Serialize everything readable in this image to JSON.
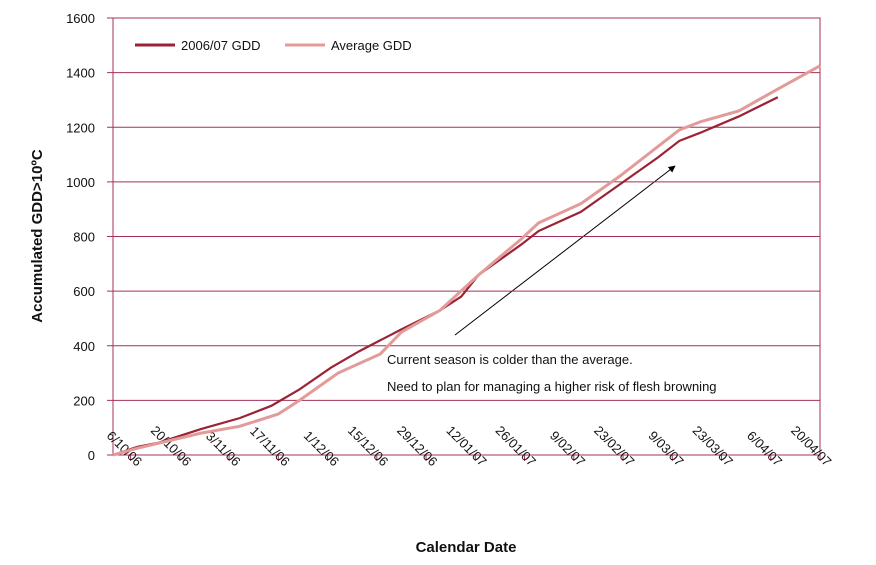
{
  "chart_data": {
    "type": "line",
    "y_label": "Accumulated GDD>10ºC",
    "x_label": "Calendar Date",
    "annotation": [
      "Current season is colder than the average.",
      "Need to plan for managing a higher risk of flesh browning"
    ],
    "xlim": [
      "2006-10-01",
      "2007-04-20"
    ],
    "xticks": [
      {
        "value": "2006-10-06",
        "label": "6/10/06"
      },
      {
        "value": "2006-10-20",
        "label": "20/10/06"
      },
      {
        "value": "2006-11-03",
        "label": "3/11/06"
      },
      {
        "value": "2006-11-17",
        "label": "17/11/06"
      },
      {
        "value": "2006-12-01",
        "label": "1/12/06"
      },
      {
        "value": "2006-12-15",
        "label": "15/12/06"
      },
      {
        "value": "2006-12-29",
        "label": "29/12/06"
      },
      {
        "value": "2007-01-12",
        "label": "12/01/07"
      },
      {
        "value": "2007-01-26",
        "label": "26/01/07"
      },
      {
        "value": "2007-02-09",
        "label": "9/02/07"
      },
      {
        "value": "2007-02-23",
        "label": "23/02/07"
      },
      {
        "value": "2007-03-09",
        "label": "9/03/07"
      },
      {
        "value": "2007-03-23",
        "label": "23/03/07"
      },
      {
        "value": "2007-04-06",
        "label": "6/04/07"
      },
      {
        "value": "2007-04-20",
        "label": "20/04/07"
      }
    ],
    "ylim": [
      0,
      1600
    ],
    "yticks": [
      0,
      200,
      400,
      600,
      800,
      1000,
      1200,
      1400,
      1600
    ],
    "grid": true,
    "legend": "top-left",
    "series": [
      {
        "name": "2006/07 GDD",
        "color": "#9b2335",
        "x": [
          "2006-10-01",
          "2006-10-08",
          "2006-10-14",
          "2006-10-26",
          "2006-11-06",
          "2006-11-15",
          "2006-11-23",
          "2006-12-02",
          "2006-12-10",
          "2006-12-22",
          "2007-01-02",
          "2007-01-08",
          "2007-01-13",
          "2007-01-25",
          "2007-01-30",
          "2007-02-11",
          "2007-02-22",
          "2007-03-05",
          "2007-03-11",
          "2007-03-17",
          "2007-03-28",
          "2007-04-08"
        ],
        "values": [
          0,
          30,
          45,
          95,
          135,
          180,
          240,
          320,
          380,
          460,
          530,
          580,
          660,
          770,
          820,
          890,
          990,
          1090,
          1150,
          1180,
          1240,
          1310
        ]
      },
      {
        "name": "Average GDD",
        "color": "#e39b9a",
        "x": [
          "2006-10-01",
          "2006-10-08",
          "2006-10-26",
          "2006-11-06",
          "2006-11-17",
          "2006-11-23",
          "2006-12-04",
          "2006-12-16",
          "2006-12-22",
          "2007-01-02",
          "2007-01-13",
          "2007-01-25",
          "2007-01-30",
          "2007-02-11",
          "2007-02-22",
          "2007-03-05",
          "2007-03-11",
          "2007-03-17",
          "2007-03-28",
          "2007-04-08",
          "2007-04-20"
        ],
        "values": [
          0,
          25,
          80,
          105,
          150,
          200,
          300,
          370,
          450,
          530,
          660,
          790,
          850,
          920,
          1020,
          1130,
          1190,
          1220,
          1260,
          1340,
          1425
        ]
      }
    ]
  }
}
